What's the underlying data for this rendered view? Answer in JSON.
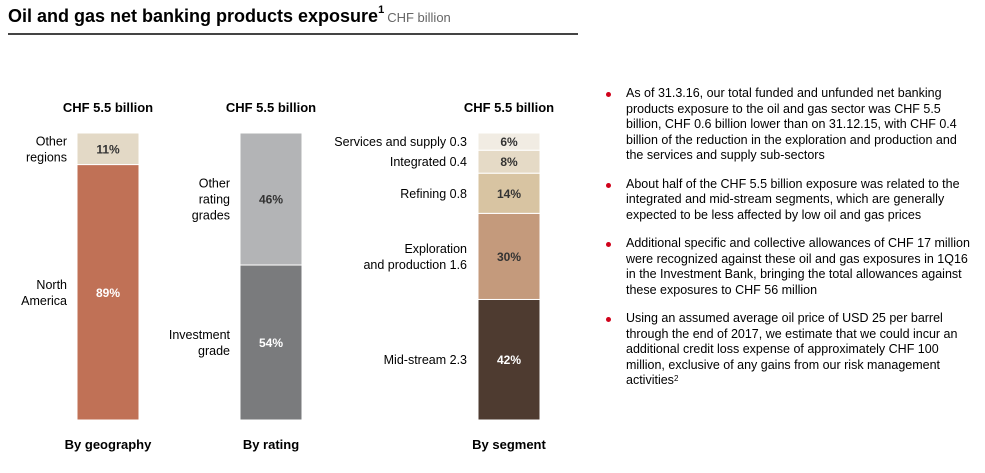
{
  "header": {
    "title": "Oil and gas net banking products exposure",
    "title_sup": "1",
    "unit": "CHF billion"
  },
  "chart_data": [
    {
      "type": "bar",
      "stacked": true,
      "title": "CHF 5.5 billion",
      "xlabel": "By geography",
      "segments": [
        {
          "name": "North America",
          "label_lines": [
            "North",
            "America"
          ],
          "value": 89,
          "value_label": "89%",
          "color": "#c07156",
          "text_color": "#ffffff"
        },
        {
          "name": "Other regions",
          "label_lines": [
            "Other",
            "regions"
          ],
          "value": 11,
          "value_label": "11%",
          "color": "#e3d9c6",
          "text_color": "#333333"
        }
      ]
    },
    {
      "type": "bar",
      "stacked": true,
      "title": "CHF 5.5 billion",
      "xlabel": "By rating",
      "segments": [
        {
          "name": "Investment grade",
          "label_lines": [
            "Investment",
            "grade"
          ],
          "value": 54,
          "value_label": "54%",
          "color": "#7a7b7d",
          "text_color": "#ffffff"
        },
        {
          "name": "Other rating grades",
          "label_lines": [
            "Other",
            "rating",
            "grades"
          ],
          "value": 46,
          "value_label": "46%",
          "color": "#b3b4b6",
          "text_color": "#333333"
        }
      ]
    },
    {
      "type": "bar",
      "stacked": true,
      "title": "CHF 5.5 billion",
      "xlabel": "By segment",
      "segments": [
        {
          "name": "Mid-stream",
          "label_lines": [
            "Mid-stream 2.3"
          ],
          "value": 42,
          "value_label": "42%",
          "color": "#4e3b30",
          "text_color": "#ffffff"
        },
        {
          "name": "Exploration and production",
          "label_lines": [
            "Exploration",
            "and production 1.6"
          ],
          "value": 30,
          "value_label": "30%",
          "color": "#c49a7c",
          "text_color": "#333333"
        },
        {
          "name": "Refining",
          "label_lines": [
            "Refining 0.8"
          ],
          "value": 14,
          "value_label": "14%",
          "color": "#d8c4a2",
          "text_color": "#333333"
        },
        {
          "name": "Integrated",
          "label_lines": [
            "Integrated 0.4"
          ],
          "value": 8,
          "value_label": "8%",
          "color": "#e5dac6",
          "text_color": "#333333"
        },
        {
          "name": "Services and supply",
          "label_lines": [
            "Services and supply 0.3"
          ],
          "value": 6,
          "value_label": "6%",
          "color": "#f1ece3",
          "text_color": "#333333"
        }
      ]
    }
  ],
  "bullets": [
    {
      "text": "As of 31.3.16, our total funded and unfunded net banking products exposure to the oil and gas sector was CHF 5.5 billion, CHF 0.6 billion lower than on 31.12.15, with CHF 0.4 billion of the reduction in the exploration and production and the services and supply sub-sectors"
    },
    {
      "text": "About half of the CHF 5.5 billion exposure was related to the integrated and mid-stream segments, which are generally expected to be less affected by low oil and gas prices"
    },
    {
      "text": "Additional specific and collective allowances of CHF 17 million were recognized against these oil and gas exposures in 1Q16 in the Investment Bank, bringing the total allowances against these exposures to CHF 56 million"
    },
    {
      "text": "Using an assumed average oil price of USD 25 per barrel through the end of 2017, we estimate that we could incur an additional credit loss expense of approximately CHF 100 million, exclusive of any gains from our risk management activities",
      "sup": "2"
    }
  ]
}
